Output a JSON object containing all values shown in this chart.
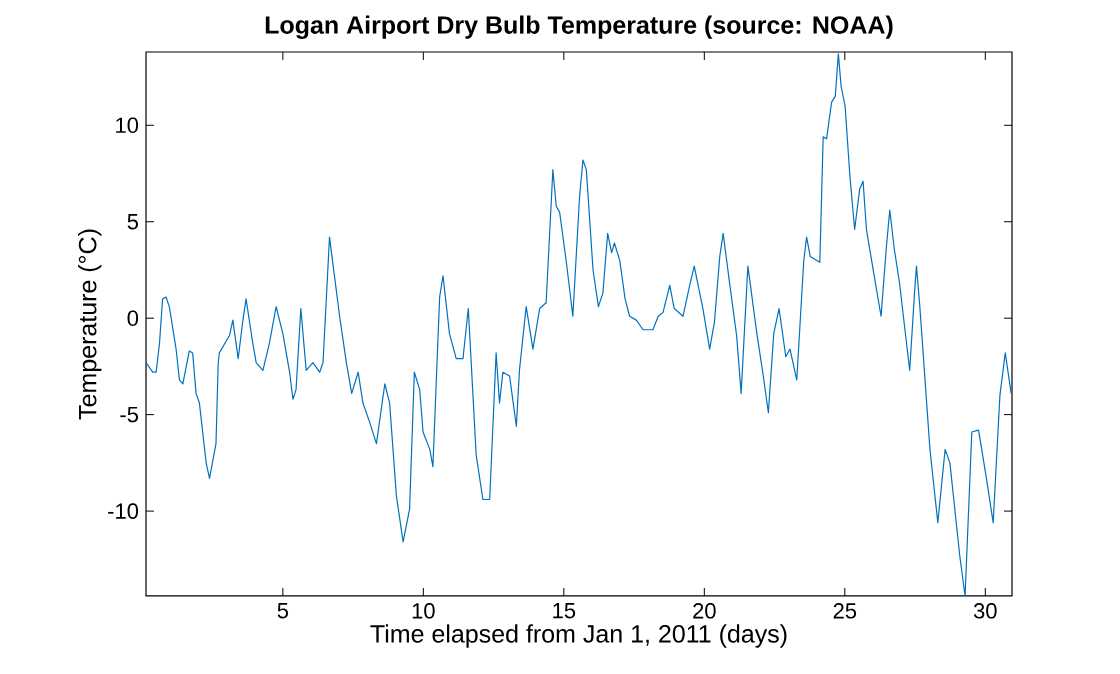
{
  "chart_data": {
    "type": "line",
    "title": "Logan Airport Dry Bulb Temperature (source: NOAA)",
    "xlabel": "Time elapsed from Jan 1, 2011 (days)",
    "ylabel": "Temperature  (°C)",
    "xlim": [
      0.13,
      30.95
    ],
    "ylim": [
      -14.4,
      13.8
    ],
    "xticks": [
      5,
      10,
      15,
      20,
      25,
      30
    ],
    "yticks": [
      -10,
      -5,
      0,
      5,
      10
    ],
    "marker": "none",
    "line_style": "solid",
    "series": [
      {
        "color": "#0072bd",
        "x": [
          0.13,
          0.37,
          0.49,
          0.61,
          0.72,
          0.84,
          0.96,
          1.2,
          1.32,
          1.44,
          1.67,
          1.79,
          1.91,
          2.03,
          2.27,
          2.39,
          2.62,
          2.7,
          2.74,
          3.1,
          3.22,
          3.41,
          3.57,
          3.69,
          3.93,
          4.05,
          4.29,
          4.52,
          4.76,
          5.0,
          5.24,
          5.36,
          5.47,
          5.64,
          5.83,
          6.07,
          6.31,
          6.43,
          6.66,
          7.02,
          7.26,
          7.45,
          7.68,
          7.85,
          8.09,
          8.33,
          8.63,
          8.8,
          9.04,
          9.28,
          9.51,
          9.68,
          9.87,
          9.99,
          10.23,
          10.34,
          10.58,
          10.7,
          10.93,
          11.17,
          11.41,
          11.6,
          11.88,
          12.12,
          12.36,
          12.59,
          12.71,
          12.83,
          13.07,
          13.31,
          13.42,
          13.66,
          13.9,
          14.14,
          14.37,
          14.61,
          14.73,
          14.85,
          15.09,
          15.32,
          15.56,
          15.68,
          15.8,
          16.04,
          16.23,
          16.39,
          16.56,
          16.7,
          16.8,
          16.99,
          17.18,
          17.34,
          17.58,
          17.82,
          18.17,
          18.36,
          18.53,
          18.77,
          18.93,
          19.24,
          19.48,
          19.64,
          19.95,
          20.19,
          20.36,
          20.55,
          20.67,
          20.91,
          21.15,
          21.31,
          21.55,
          21.87,
          22.1,
          22.28,
          22.47,
          22.66,
          22.9,
          23.05,
          23.29,
          23.54,
          23.64,
          23.77,
          24.11,
          24.23,
          24.35,
          24.53,
          24.66,
          24.77,
          24.87,
          25.01,
          25.18,
          25.35,
          25.53,
          25.65,
          25.77,
          26.01,
          26.29,
          26.48,
          26.6,
          26.76,
          26.95,
          27.14,
          27.31,
          27.48,
          27.55,
          27.67,
          28.03,
          28.31,
          28.57,
          28.74,
          29.09,
          29.28,
          29.52,
          29.76,
          30.04,
          30.28,
          30.52,
          30.71,
          30.92
        ],
        "values": [
          -2.3,
          -2.8,
          -2.8,
          -1.3,
          1.0,
          1.1,
          0.6,
          -1.6,
          -3.2,
          -3.4,
          -1.7,
          -1.8,
          -3.9,
          -4.4,
          -7.5,
          -8.3,
          -6.5,
          -2.3,
          -1.8,
          -0.9,
          -0.1,
          -2.1,
          -0.2,
          1.0,
          -1.3,
          -2.3,
          -2.7,
          -1.3,
          0.6,
          -0.8,
          -2.8,
          -4.2,
          -3.7,
          0.5,
          -2.7,
          -2.3,
          -2.8,
          -2.3,
          4.2,
          0.1,
          -2.3,
          -3.9,
          -2.8,
          -4.4,
          -5.4,
          -6.5,
          -3.4,
          -4.4,
          -9.2,
          -11.6,
          -9.9,
          -2.8,
          -3.7,
          -5.9,
          -6.8,
          -7.7,
          1.1,
          2.2,
          -0.8,
          -2.1,
          -2.1,
          0.5,
          -7.1,
          -9.4,
          -9.4,
          -1.8,
          -4.4,
          -2.8,
          -3.0,
          -5.6,
          -2.7,
          0.6,
          -1.6,
          0.5,
          0.8,
          7.7,
          5.8,
          5.5,
          2.9,
          0.1,
          6.3,
          8.2,
          7.7,
          2.5,
          0.6,
          1.3,
          4.4,
          3.4,
          3.9,
          3.0,
          1.0,
          0.1,
          -0.1,
          -0.6,
          -0.6,
          0.1,
          0.3,
          1.7,
          0.5,
          0.1,
          1.7,
          2.7,
          0.5,
          -1.6,
          -0.2,
          3.2,
          4.4,
          1.7,
          -0.9,
          -3.9,
          2.7,
          -0.8,
          -3.0,
          -4.9,
          -0.8,
          0.5,
          -2.0,
          -1.6,
          -3.2,
          3.0,
          4.2,
          3.2,
          2.9,
          9.4,
          9.3,
          11.2,
          11.5,
          13.7,
          12.0,
          11.0,
          7.4,
          4.6,
          6.7,
          7.1,
          4.6,
          2.5,
          0.1,
          3.7,
          5.6,
          3.6,
          1.8,
          -0.6,
          -2.7,
          1.3,
          2.7,
          0.6,
          -6.8,
          -10.6,
          -6.8,
          -7.5,
          -12.3,
          -14.4,
          -5.9,
          -5.8,
          -8.3,
          -10.6,
          -4.0,
          -1.8,
          -3.9
        ]
      }
    ]
  }
}
